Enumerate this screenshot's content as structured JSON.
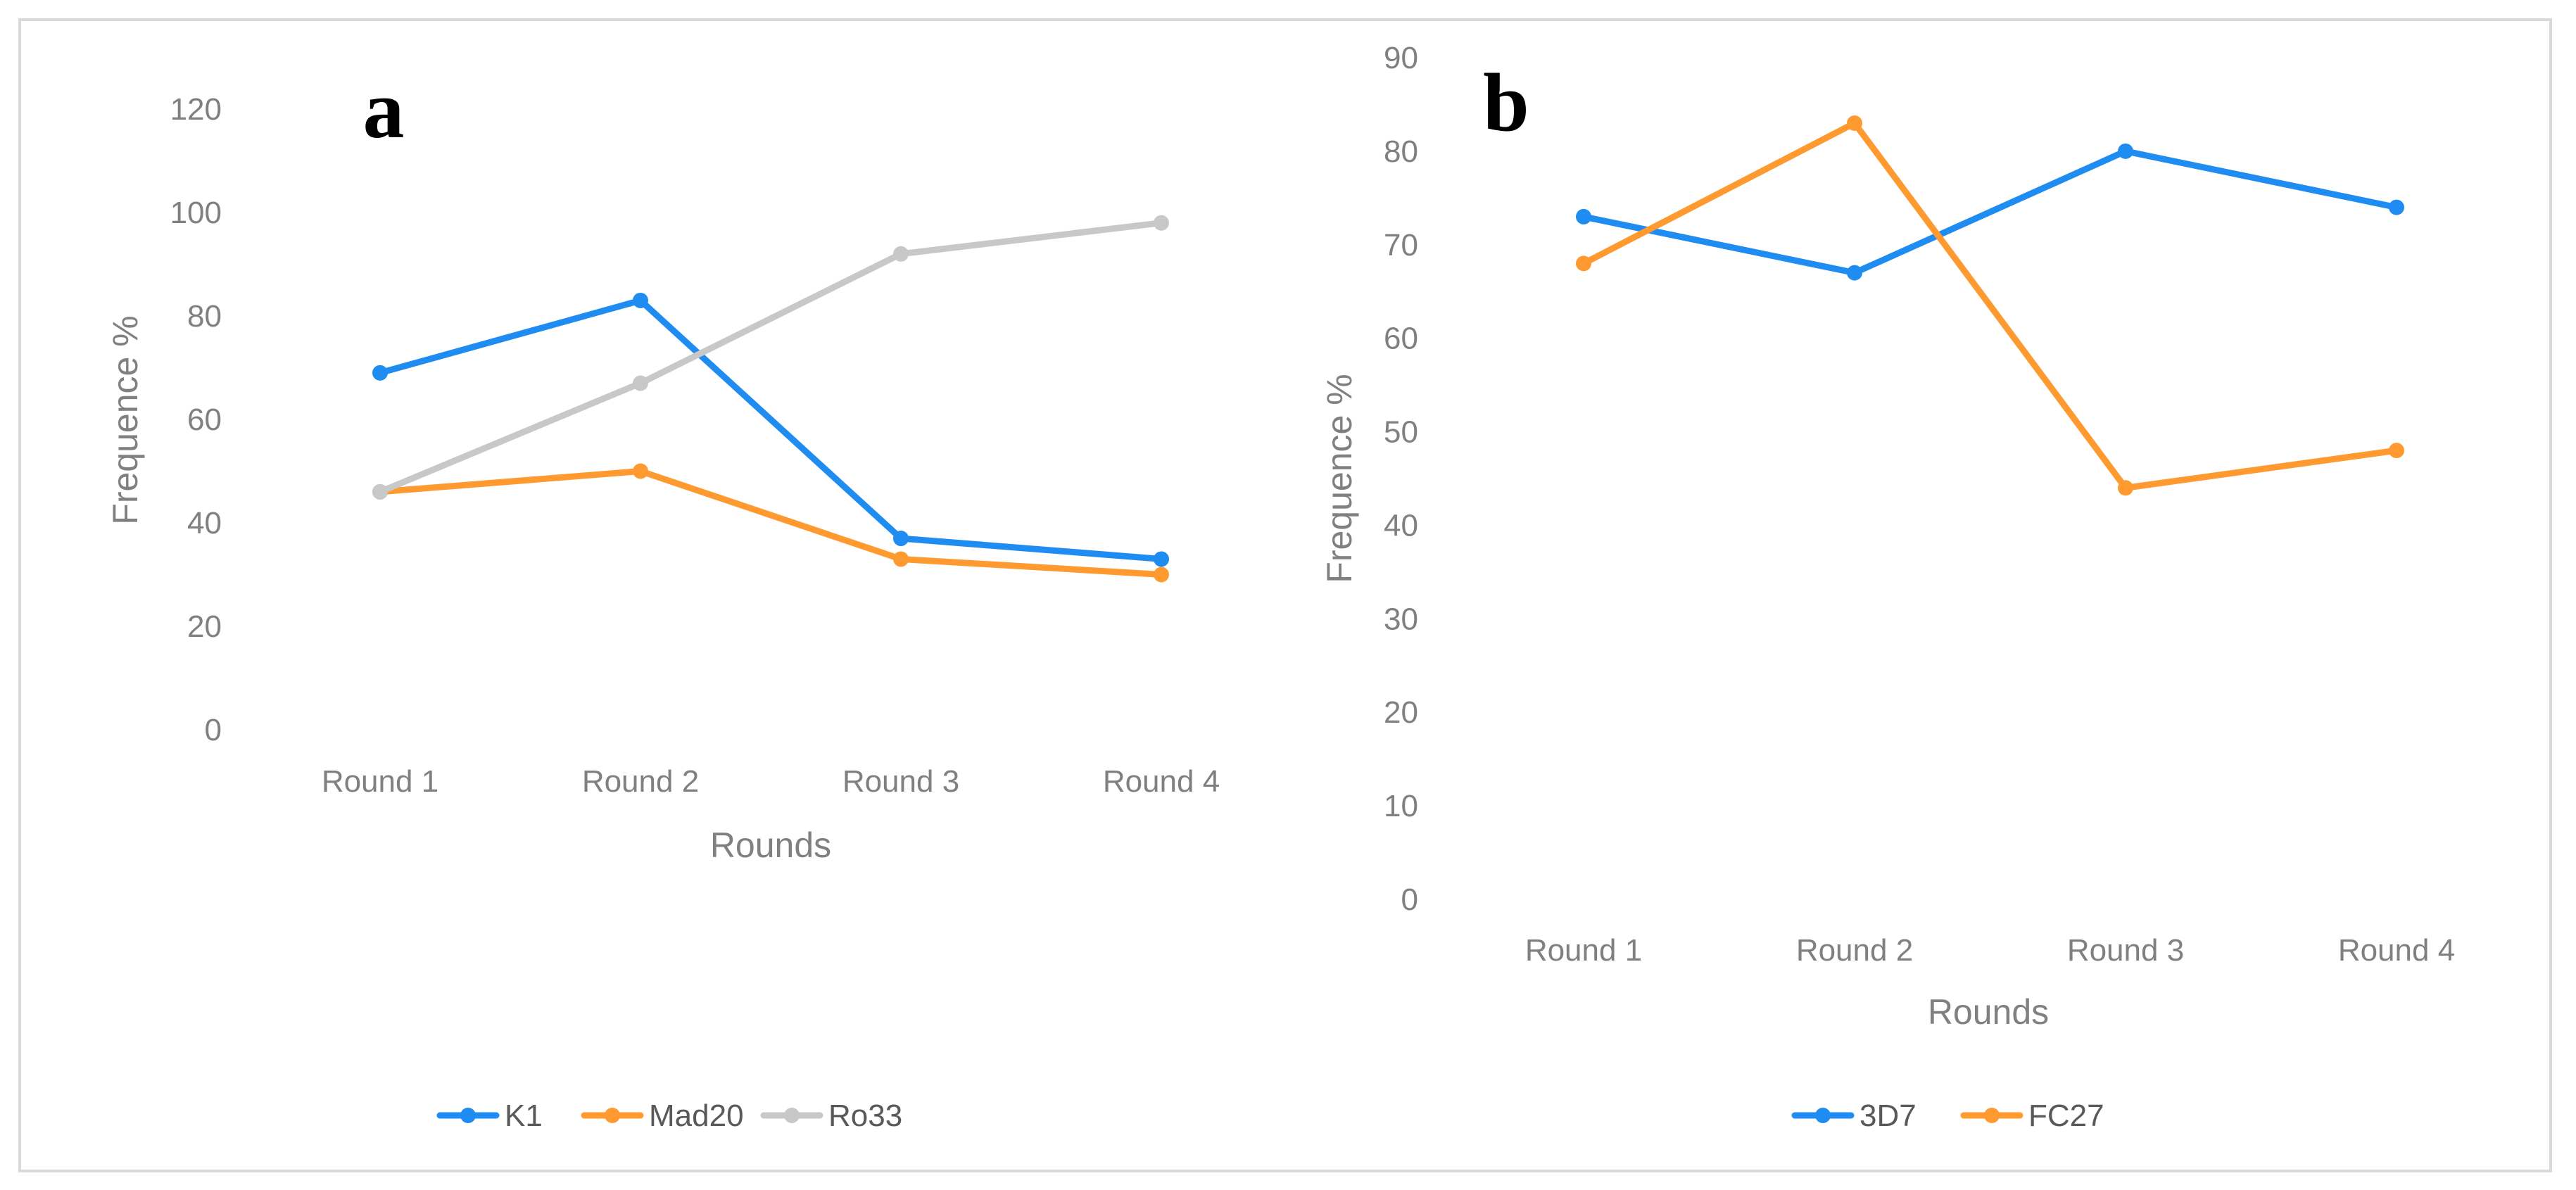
{
  "chart_data": [
    {
      "panel": "a",
      "type": "line",
      "categories": [
        "Round 1",
        "Round 2",
        "Round 3",
        "Round 4"
      ],
      "series": [
        {
          "name": "K1",
          "values": [
            69,
            83,
            37,
            33
          ],
          "color": "#1E8CF0"
        },
        {
          "name": "Mad20",
          "values": [
            46,
            50,
            33,
            30
          ],
          "color": "#FF9A30"
        },
        {
          "name": "Ro33",
          "values": [
            46,
            67,
            92,
            98
          ],
          "color": "#C8C8C8"
        }
      ],
      "title": "",
      "xlabel": "Rounds",
      "ylabel": "Frequence %",
      "ylim": [
        0,
        120
      ],
      "yticks": [
        0,
        20,
        40,
        60,
        80,
        100,
        120
      ],
      "grid": false,
      "legend": "bottom"
    },
    {
      "panel": "b",
      "type": "line",
      "categories": [
        "Round 1",
        "Round 2",
        "Round 3",
        "Round 4"
      ],
      "series": [
        {
          "name": "3D7",
          "values": [
            73,
            67,
            80,
            74
          ],
          "color": "#1E8CF0"
        },
        {
          "name": "FC27",
          "values": [
            68,
            83,
            44,
            48
          ],
          "color": "#FF9A30"
        }
      ],
      "title": "",
      "xlabel": "Rounds",
      "ylabel": "Frequence %",
      "ylim": [
        0,
        90
      ],
      "yticks": [
        0,
        10,
        20,
        30,
        40,
        50,
        60,
        70,
        80,
        90
      ],
      "grid": false,
      "legend": "bottom"
    }
  ]
}
